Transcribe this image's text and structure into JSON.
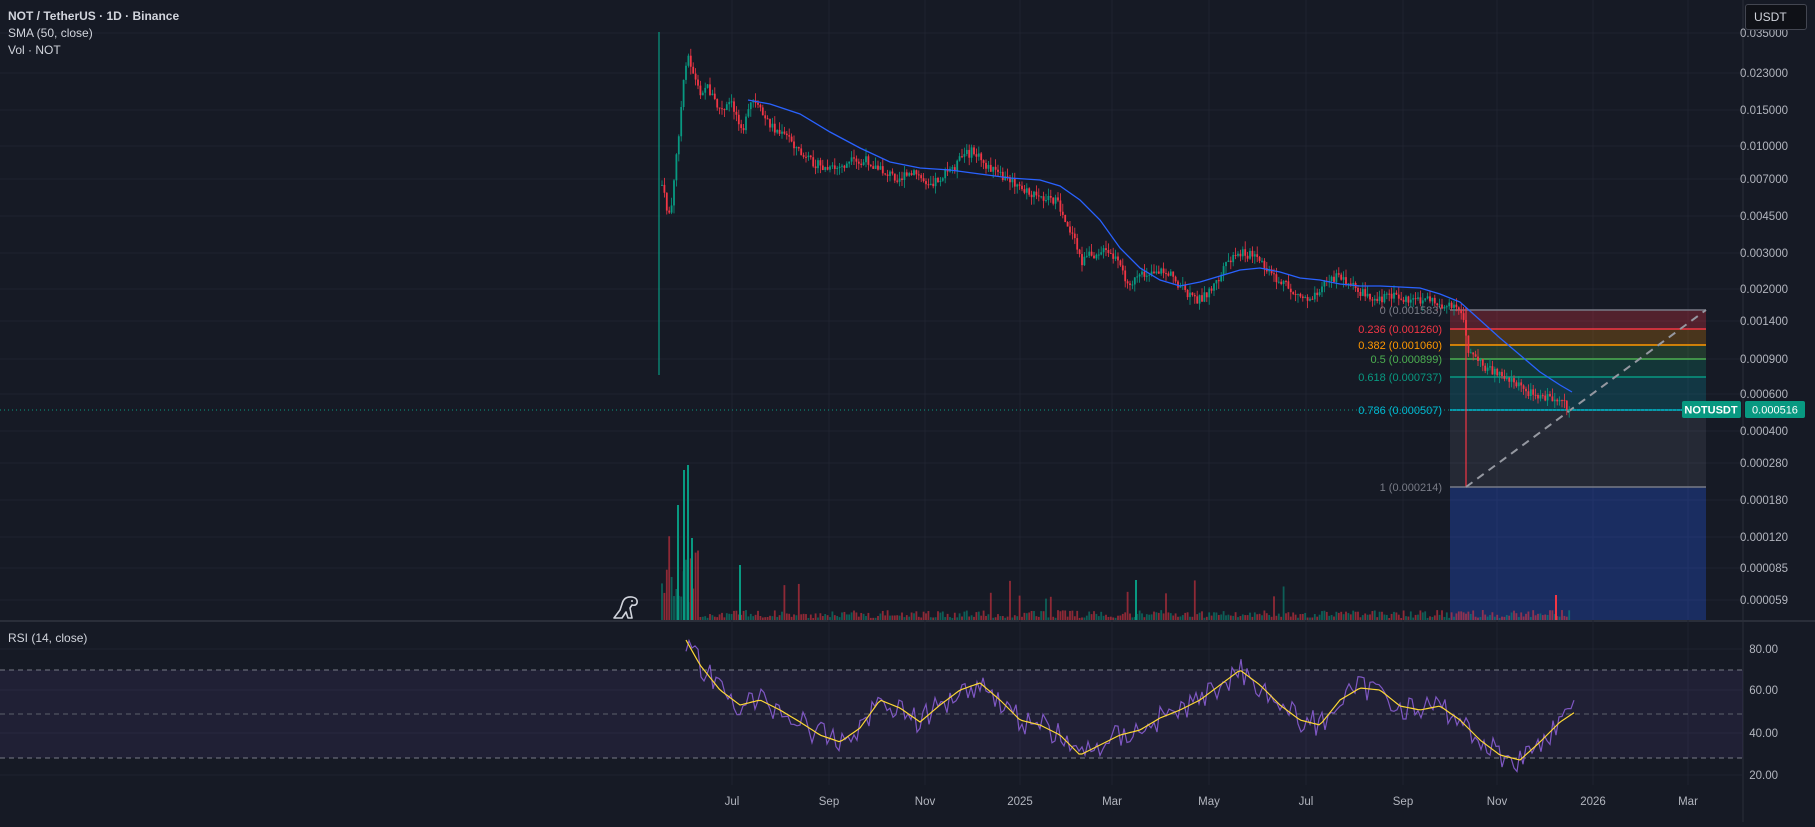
{
  "header": {
    "symbol_line": "NOT / TetherUS · 1D · Binance",
    "sma_line": "SMA (50, close)",
    "vol_line": "Vol · NOT",
    "currency_button": "USDT"
  },
  "price_axis": {
    "labels": [
      "0.035000",
      "0.023000",
      "0.015000",
      "0.010000",
      "0.007000",
      "0.004500",
      "0.003000",
      "0.002000",
      "0.001400",
      "0.000900",
      "0.000600",
      "0.000400",
      "0.000280",
      "0.000180",
      "0.000120",
      "0.000085",
      "0.000059"
    ],
    "current_symbol": "NOTUSDT",
    "current_price": "0.000516"
  },
  "rsi": {
    "label": "RSI (14, close)",
    "axis_labels": [
      "80.00",
      "60.00",
      "40.00",
      "20.00"
    ]
  },
  "time_axis": {
    "labels": [
      "Jul",
      "Sep",
      "Nov",
      "2025",
      "Mar",
      "May",
      "Jul",
      "Sep",
      "Nov",
      "2026",
      "Mar"
    ]
  },
  "fib": {
    "levels": [
      {
        "label": "0 (0.001583)",
        "color": "#787b86"
      },
      {
        "label": "0.236 (0.001260)",
        "color": "#f23645"
      },
      {
        "label": "0.382 (0.001060)",
        "color": "#ff9800"
      },
      {
        "label": "0.5 (0.000899)",
        "color": "#4caf50"
      },
      {
        "label": "0.618 (0.000737)",
        "color": "#089981"
      },
      {
        "label": "0.786 (0.000507)",
        "color": "#00bcd4"
      },
      {
        "label": "1 (0.000214)",
        "color": "#787b86"
      }
    ]
  },
  "colors": {
    "background": "#161a25",
    "up": "#089981",
    "down": "#f23645",
    "sma": "#2962ff",
    "rsi": "#7e57c2",
    "rsi_ma": "#fdd835",
    "price_badge": "#089981"
  },
  "icons": {
    "logo": "tradingview-dino-icon"
  }
}
